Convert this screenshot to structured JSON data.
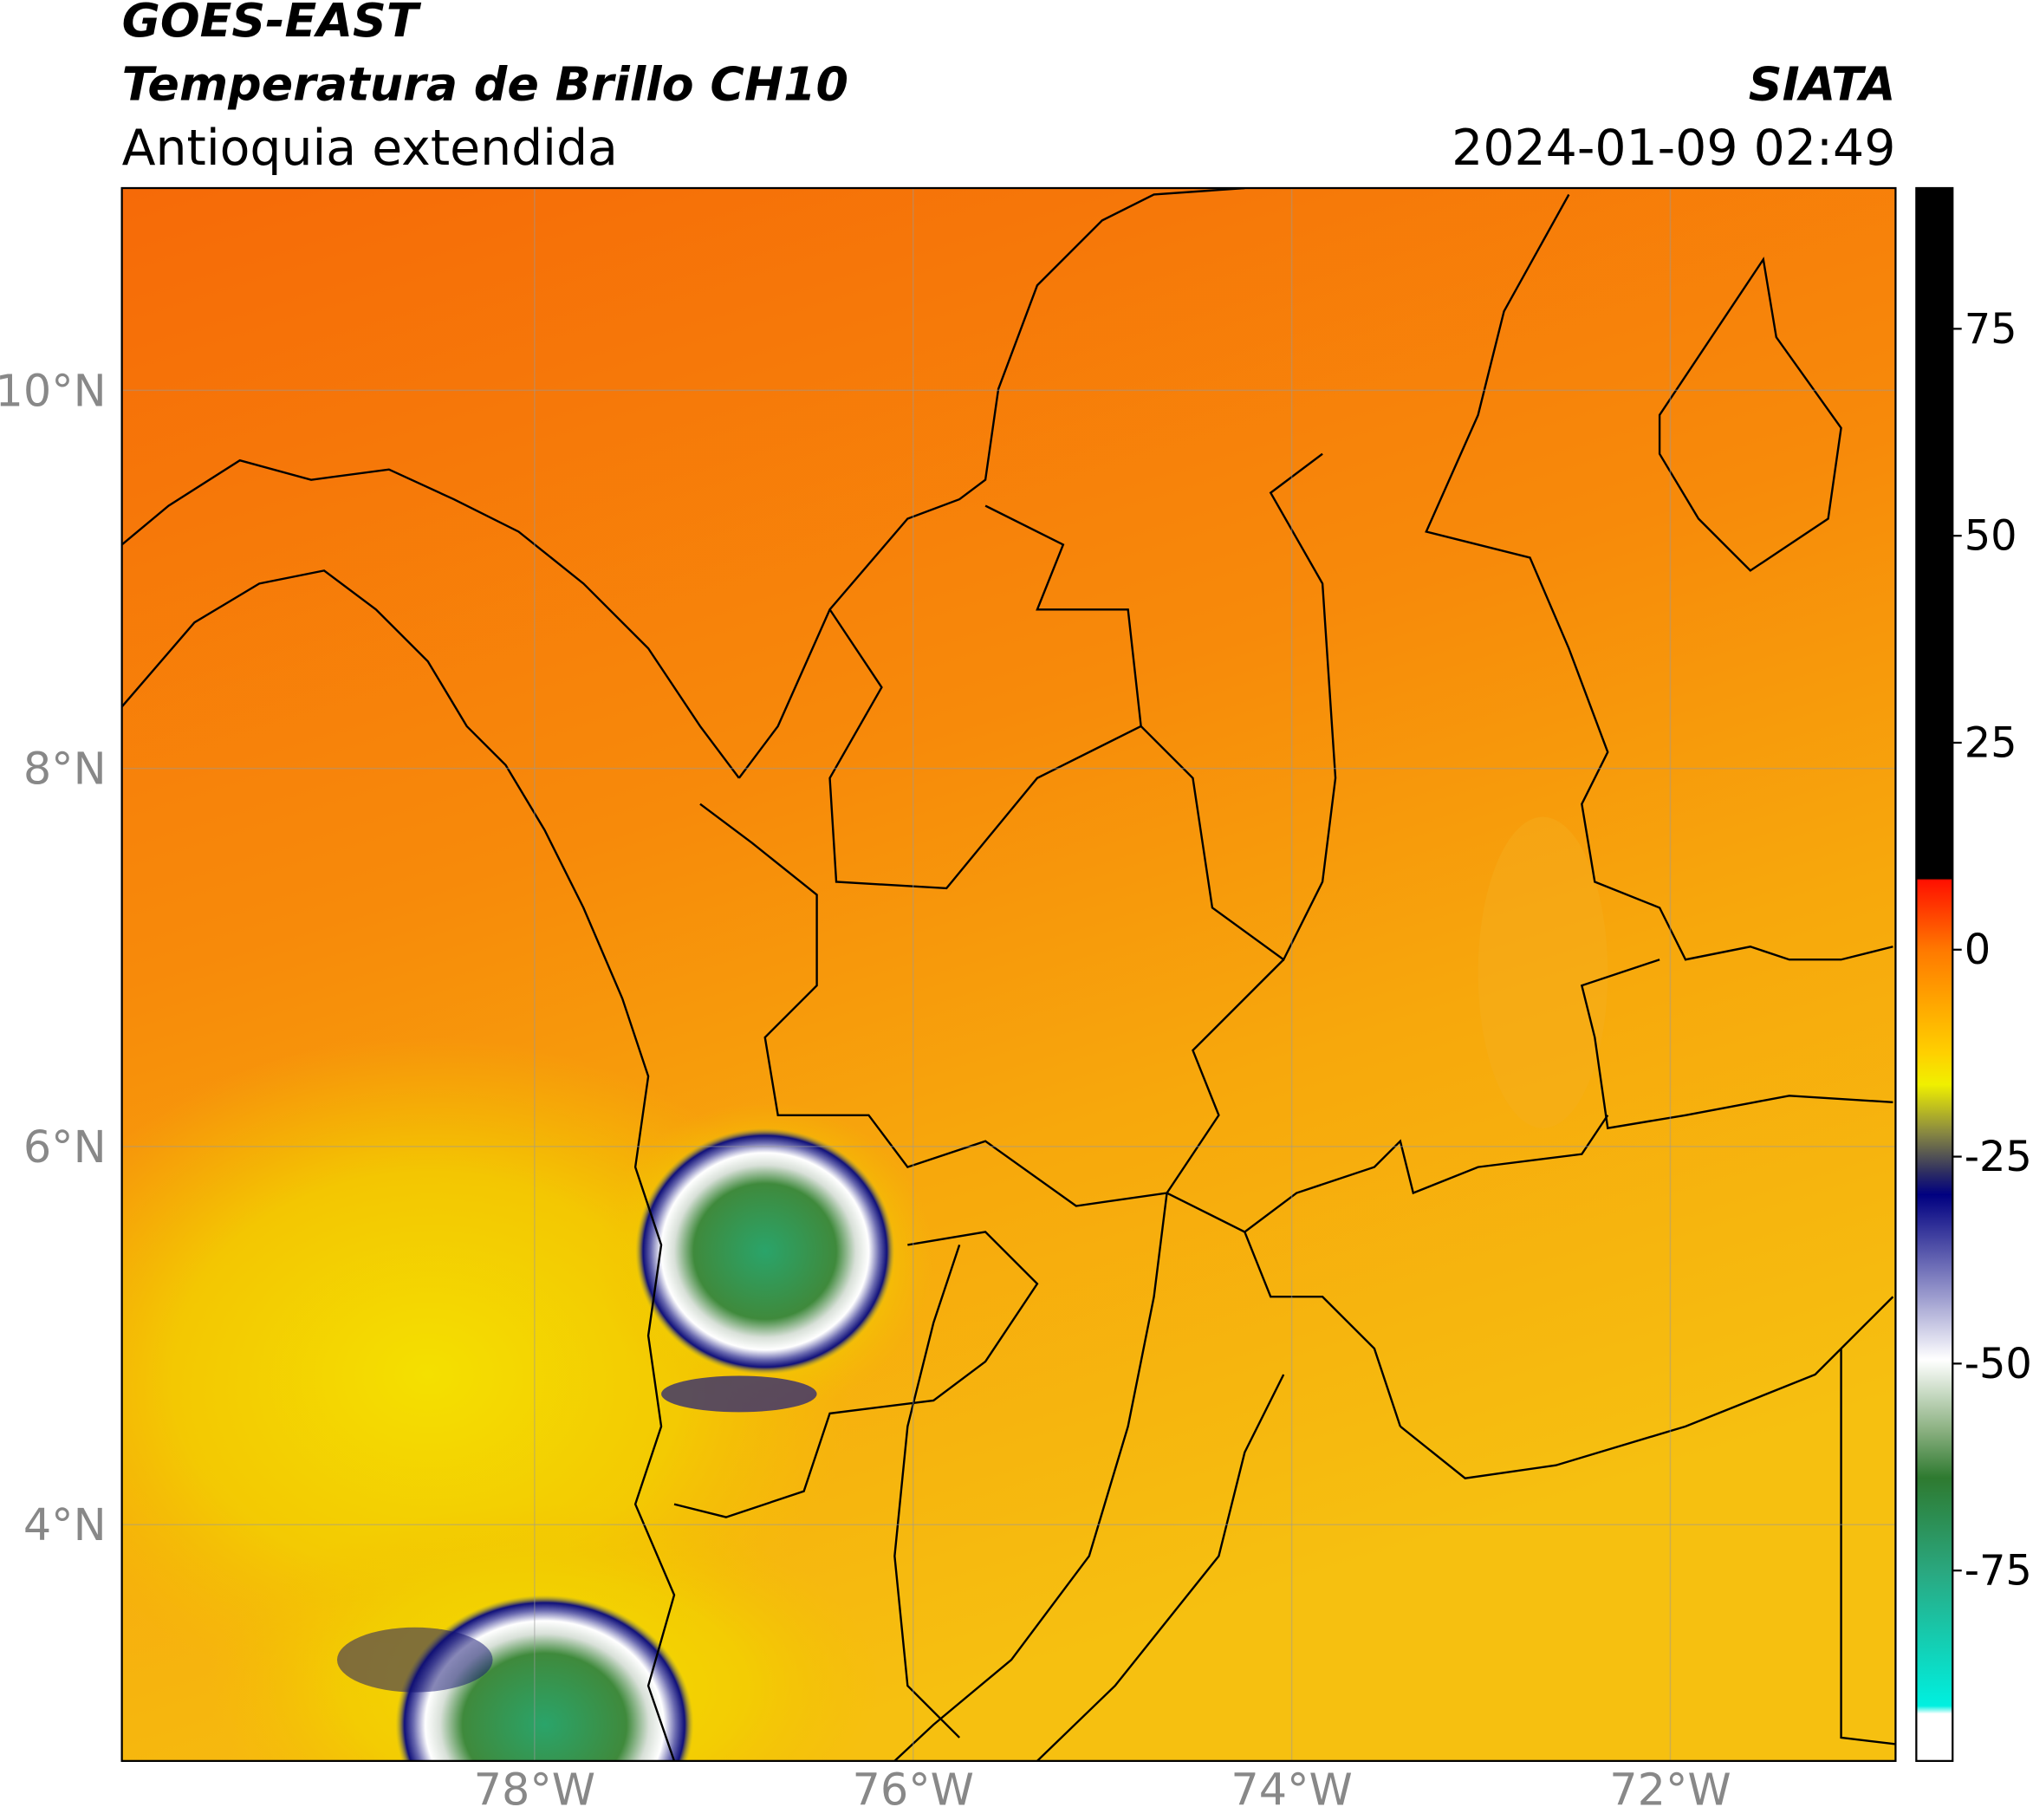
{
  "header": {
    "source": "GOES-EAST",
    "title": "Temperatura de Brillo CH10",
    "region": "Antioquia extendida",
    "org": "SIATA",
    "datetime": "2024-01-09 02:49"
  },
  "map": {
    "lon_lim": [
      -80.18,
      -70.81
    ],
    "lat_lim": [
      2.75,
      11.07
    ],
    "lon_ticks": [
      {
        "value": -78,
        "label": "78°W"
      },
      {
        "value": -76,
        "label": "76°W"
      },
      {
        "value": -74,
        "label": "74°W"
      },
      {
        "value": -72,
        "label": "72°W"
      }
    ],
    "lat_ticks": [
      {
        "value": 10,
        "label": "10°N"
      },
      {
        "value": 8,
        "label": "8°N"
      },
      {
        "value": 6,
        "label": "6°N"
      },
      {
        "value": 4,
        "label": "4°N"
      }
    ]
  },
  "colorbar": {
    "lim": [
      -98,
      92
    ],
    "ticks": [
      75,
      50,
      25,
      0,
      -25,
      -50,
      -75
    ]
  }
}
